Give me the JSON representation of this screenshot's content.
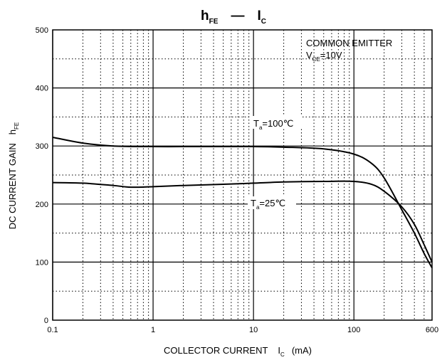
{
  "chart_data": {
    "type": "line",
    "title": {
      "left_main": "h",
      "left_sub": "FE",
      "dash": "—",
      "right_main": "I",
      "right_sub": "C"
    },
    "xlabel": {
      "main": "COLLECTOR CURRENT",
      "symbol": "I",
      "symbol_sub": "C",
      "unit": "(mA)"
    },
    "ylabel": {
      "main": "DC CURRENT GAIN",
      "symbol": "h",
      "symbol_sub": "FE"
    },
    "x_scale": "log",
    "xlim": [
      0.1,
      600
    ],
    "ylim": [
      0,
      500
    ],
    "x_ticks": [
      {
        "value": 0.1,
        "label": "0.1"
      },
      {
        "value": 1,
        "label": "1"
      },
      {
        "value": 10,
        "label": "10"
      },
      {
        "value": 100,
        "label": "100"
      },
      {
        "value": 600,
        "label": "600"
      }
    ],
    "y_ticks": [
      {
        "value": 0,
        "label": "0"
      },
      {
        "value": 100,
        "label": "100"
      },
      {
        "value": 200,
        "label": "200"
      },
      {
        "value": 300,
        "label": "300"
      },
      {
        "value": 400,
        "label": "400"
      },
      {
        "value": 500,
        "label": "500"
      }
    ],
    "grid": true,
    "conditions": {
      "line1": "COMMON EMITTER",
      "line2_main": "V",
      "line2_sub": "CE",
      "line2_rest": "=10V"
    },
    "series": [
      {
        "name_main": "T",
        "name_sub": "a",
        "name_rest": "=100℃",
        "x": [
          0.1,
          0.2,
          0.4,
          1,
          2,
          5,
          10,
          20,
          50,
          100,
          150,
          200,
          300,
          400,
          500,
          600
        ],
        "y": [
          315,
          305,
          300,
          299,
          299,
          299,
          299,
          298,
          295,
          286,
          270,
          245,
          190,
          150,
          115,
          90
        ]
      },
      {
        "name_main": "T",
        "name_sub": "a",
        "name_rest": "=25℃",
        "x": [
          0.1,
          0.2,
          0.4,
          0.6,
          1,
          2,
          5,
          10,
          20,
          50,
          100,
          150,
          200,
          300,
          400,
          500,
          600
        ],
        "y": [
          237,
          236,
          232,
          229,
          230,
          232,
          234,
          236,
          238,
          239,
          239,
          234,
          222,
          195,
          165,
          130,
          100
        ]
      }
    ]
  }
}
